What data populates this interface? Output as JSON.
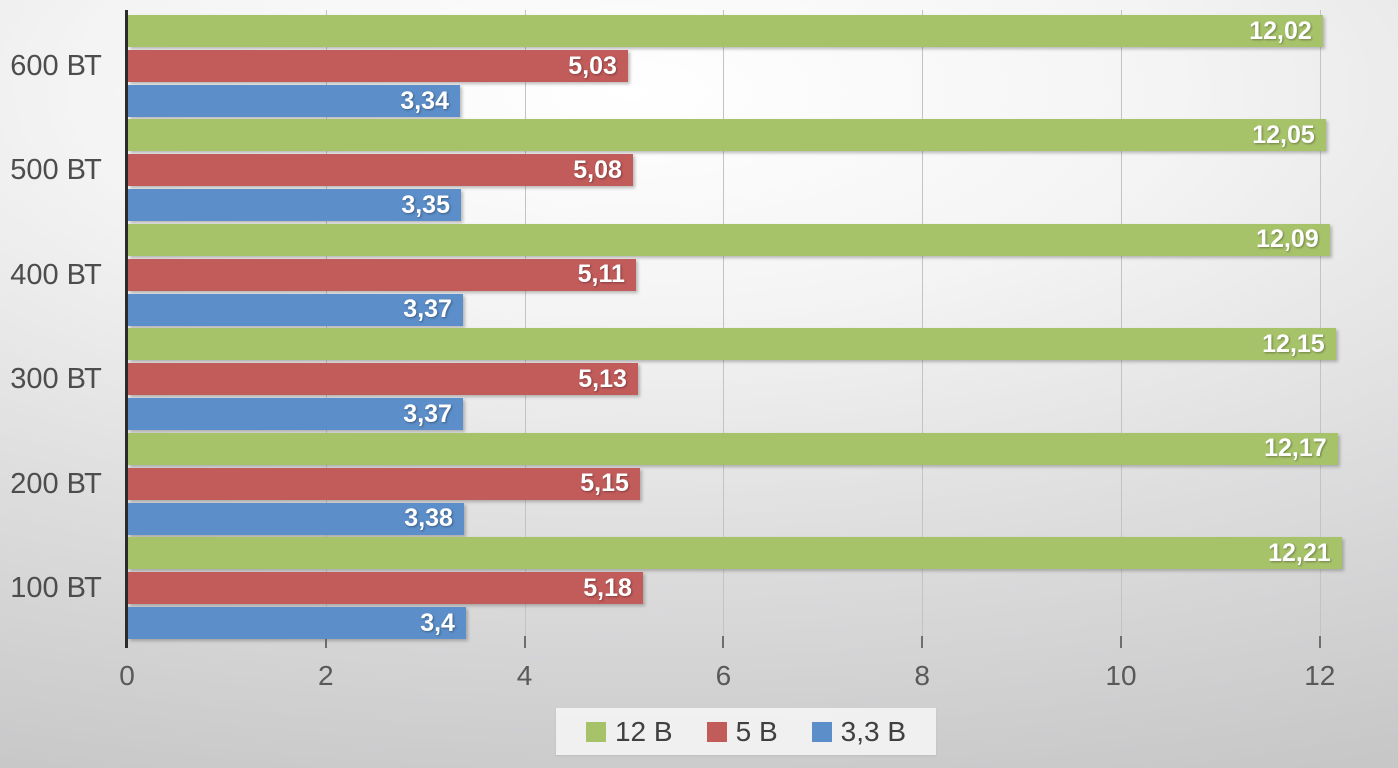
{
  "chart_data": {
    "type": "bar",
    "orientation": "horizontal",
    "title": "",
    "xlabel": "",
    "ylabel": "",
    "grid": true,
    "legend_position": "bottom",
    "xlim": [
      0,
      12
    ],
    "x_ticks": [
      "0",
      "2",
      "4",
      "6",
      "8",
      "10",
      "12"
    ],
    "x_tick_values": [
      0,
      2,
      4,
      6,
      8,
      10,
      12
    ],
    "categories": [
      "600 ВТ",
      "500 ВТ",
      "400 ВТ",
      "300 ВТ",
      "200 ВТ",
      "100 ВТ"
    ],
    "series": [
      {
        "name": "12 В",
        "color": "#a7c36a",
        "values": [
          12.02,
          12.05,
          12.09,
          12.15,
          12.17,
          12.21
        ],
        "labels": [
          "12,02",
          "12,05",
          "12,09",
          "12,15",
          "12,17",
          "12,21"
        ]
      },
      {
        "name": "5 В",
        "color": "#c25c5b",
        "values": [
          5.03,
          5.08,
          5.11,
          5.13,
          5.15,
          5.18
        ],
        "labels": [
          "5,03",
          "5,08",
          "5,11",
          "5,13",
          "5,15",
          "5,18"
        ]
      },
      {
        "name": "3,3 В",
        "color": "#5c8ec9",
        "values": [
          3.34,
          3.35,
          3.37,
          3.37,
          3.38,
          3.4
        ],
        "labels": [
          "3,34",
          "3,35",
          "3,37",
          "3,37",
          "3,38",
          "3,4"
        ]
      }
    ]
  },
  "colors": {
    "axis_line": "#2b2b2b",
    "gridline": "#c3c3c4",
    "category_text": "#4d4d4d",
    "tick_text": "#595959",
    "legend_text": "#404040",
    "bar_label_text": "#ffffff",
    "legend_background": "#f3f3f3"
  }
}
